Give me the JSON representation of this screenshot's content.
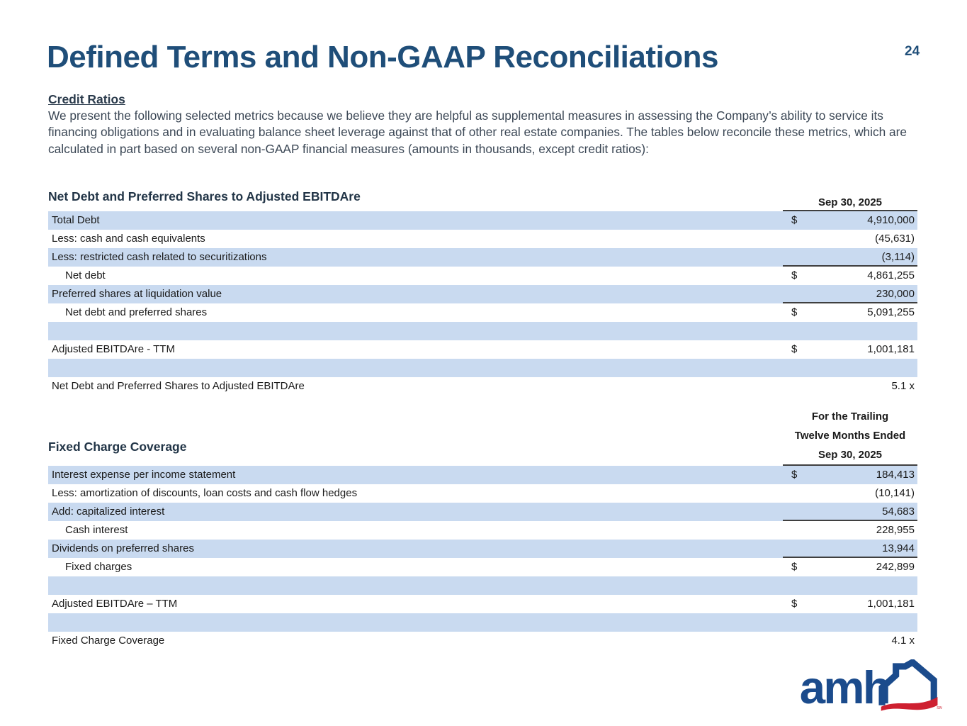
{
  "page": {
    "title": "Defined Terms and Non-GAAP Reconciliations",
    "page_number": "24"
  },
  "intro": {
    "heading": "Credit Ratios",
    "body": "We present the following selected metrics because we believe they are helpful as supplemental measures in assessing the Company’s ability to service its financing obligations and in evaluating balance sheet leverage against that of other real estate companies. The tables below reconcile these metrics, which are calculated in part based on several non-GAAP financial measures (amounts in thousands, except credit ratios):"
  },
  "tables": [
    {
      "title": "Net Debt and Preferred Shares to Adjusted EBITDAre",
      "column_header": {
        "lines": [
          "Sep 30, 2025"
        ]
      },
      "rows": [
        {
          "label": "Total Debt",
          "dollar": "$",
          "value": "4,910,000",
          "shaded": true,
          "indent": false,
          "rule_below": false
        },
        {
          "label": "Less: cash and cash equivalents",
          "dollar": "",
          "value": "(45,631)",
          "shaded": false,
          "indent": false,
          "rule_below": false
        },
        {
          "label": "Less: restricted cash related to securitizations",
          "dollar": "",
          "value": "(3,114)",
          "shaded": true,
          "indent": false,
          "rule_below": true
        },
        {
          "label": "Net debt",
          "dollar": "$",
          "value": "4,861,255",
          "shaded": false,
          "indent": true,
          "rule_below": false
        },
        {
          "label": "Preferred shares at liquidation value",
          "dollar": "",
          "value": "230,000",
          "shaded": true,
          "indent": false,
          "rule_below": true
        },
        {
          "label": "Net debt and preferred shares",
          "dollar": "$",
          "value": "5,091,255",
          "shaded": false,
          "indent": true,
          "rule_below": false
        },
        {
          "label": "",
          "dollar": "",
          "value": "",
          "shaded": true,
          "indent": false,
          "rule_below": false
        },
        {
          "label": "Adjusted EBITDAre - TTM",
          "dollar": "$",
          "value": "1,001,181",
          "shaded": false,
          "indent": false,
          "rule_below": false
        },
        {
          "label": "",
          "dollar": "",
          "value": "",
          "shaded": true,
          "indent": false,
          "rule_below": false
        },
        {
          "label": "Net Debt and Preferred Shares to Adjusted EBITDAre",
          "dollar": "",
          "value": "5.1 x",
          "shaded": false,
          "indent": false,
          "rule_below": false
        }
      ]
    },
    {
      "title": "Fixed Charge Coverage",
      "column_header": {
        "lines": [
          "For the Trailing",
          "Twelve Months Ended",
          "Sep 30, 2025"
        ]
      },
      "rows": [
        {
          "label": "Interest expense per income statement",
          "dollar": "$",
          "value": "184,413",
          "shaded": true,
          "indent": false,
          "rule_below": false
        },
        {
          "label": "Less: amortization of discounts, loan costs and cash flow hedges",
          "dollar": "",
          "value": "(10,141)",
          "shaded": false,
          "indent": false,
          "rule_below": false
        },
        {
          "label": "Add: capitalized interest",
          "dollar": "",
          "value": "54,683",
          "shaded": true,
          "indent": false,
          "rule_below": true
        },
        {
          "label": "Cash interest",
          "dollar": "",
          "value": "228,955",
          "shaded": false,
          "indent": true,
          "rule_below": false
        },
        {
          "label": "Dividends on preferred shares",
          "dollar": "",
          "value": "13,944",
          "shaded": true,
          "indent": false,
          "rule_below": true
        },
        {
          "label": "Fixed charges",
          "dollar": "$",
          "value": "242,899",
          "shaded": false,
          "indent": true,
          "rule_below": false
        },
        {
          "label": "",
          "dollar": "",
          "value": "",
          "shaded": true,
          "indent": false,
          "rule_below": false
        },
        {
          "label": "Adjusted EBITDAre – TTM",
          "dollar": "$",
          "value": "1,001,181",
          "shaded": false,
          "indent": false,
          "rule_below": false
        },
        {
          "label": "",
          "dollar": "",
          "value": "",
          "shaded": true,
          "indent": false,
          "rule_below": false
        },
        {
          "label": "Fixed Charge Coverage",
          "dollar": "",
          "value": "4.1 x",
          "shaded": false,
          "indent": false,
          "rule_below": false
        }
      ]
    }
  ],
  "logo": {
    "text": "amh",
    "trademark": "SM",
    "blue": "#1B4B8C",
    "red": "#CE2030"
  },
  "colors": {
    "title_blue": "#1F4E79",
    "row_shade_blue": "#C9DAF0",
    "rule_gray": "#3f3f3f"
  }
}
